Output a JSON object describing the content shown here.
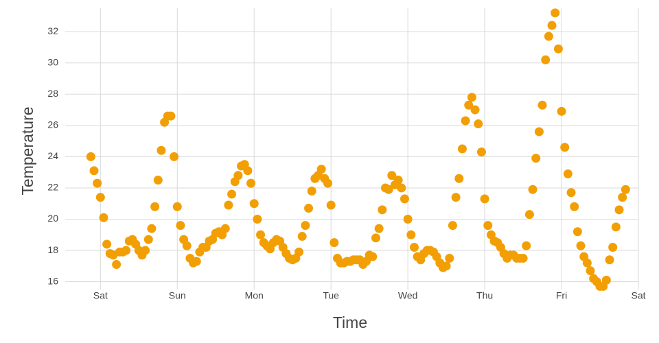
{
  "chart_data": {
    "type": "scatter",
    "x_label": "Time",
    "y_label": "Temperature",
    "color": "#f29f05",
    "grid": true,
    "x": [
      -3,
      -2,
      -1,
      0,
      1,
      2,
      3,
      4,
      5,
      6,
      7,
      8,
      9,
      10,
      11,
      12,
      13,
      14,
      15,
      16,
      17,
      18,
      19,
      20,
      21,
      22,
      23,
      24,
      25,
      26,
      27,
      28,
      29,
      30,
      31,
      32,
      33,
      34,
      35,
      36,
      37,
      38,
      39,
      40,
      41,
      42,
      43,
      44,
      45,
      46,
      47,
      48,
      49,
      50,
      51,
      52,
      53,
      54,
      55,
      56,
      57,
      58,
      59,
      60,
      61,
      62,
      63,
      64,
      65,
      66,
      67,
      68,
      69,
      70,
      71,
      72,
      73,
      74,
      75,
      76,
      77,
      78,
      79,
      80,
      81,
      82,
      83,
      84,
      85,
      86,
      87,
      88,
      89,
      90,
      91,
      92,
      93,
      94,
      95,
      96,
      97,
      98,
      99,
      100,
      101,
      102,
      103,
      104,
      105,
      106,
      107,
      108,
      109,
      110,
      111,
      112,
      113,
      114,
      115,
      116,
      117,
      118,
      119,
      120,
      121,
      122,
      123,
      124,
      125,
      126,
      127,
      128,
      129,
      130,
      131,
      132,
      133,
      134,
      135,
      136,
      137,
      138,
      139,
      140,
      141,
      142,
      143,
      144,
      145,
      146,
      147,
      148,
      149,
      150,
      151,
      152,
      153,
      154,
      155,
      156,
      157,
      158,
      159,
      160,
      161,
      162,
      163,
      164
    ],
    "values": [
      24.0,
      23.1,
      22.3,
      21.4,
      20.1,
      18.4,
      17.8,
      17.7,
      17.1,
      17.9,
      17.9,
      18.0,
      18.6,
      18.7,
      18.4,
      18.0,
      17.7,
      18.0,
      18.7,
      19.4,
      20.8,
      22.5,
      24.4,
      26.2,
      26.6,
      26.6,
      24.0,
      20.8,
      19.6,
      18.7,
      18.3,
      17.5,
      17.2,
      17.3,
      17.9,
      18.2,
      18.2,
      18.6,
      18.7,
      19.1,
      19.2,
      19.0,
      19.4,
      20.9,
      21.6,
      22.4,
      22.8,
      23.4,
      23.5,
      23.1,
      22.3,
      21.0,
      20.0,
      19.0,
      18.5,
      18.3,
      18.1,
      18.5,
      18.7,
      18.6,
      18.2,
      17.8,
      17.5,
      17.4,
      17.5,
      17.9,
      18.9,
      19.6,
      20.7,
      21.8,
      22.6,
      22.8,
      23.2,
      22.6,
      22.3,
      20.9,
      18.5,
      17.5,
      17.2,
      17.2,
      17.3,
      17.3,
      17.4,
      17.4,
      17.4,
      17.1,
      17.3,
      17.7,
      17.6,
      18.8,
      19.4,
      20.6,
      22.0,
      21.9,
      22.8,
      22.2,
      22.5,
      22.0,
      21.3,
      20.0,
      19.0,
      18.2,
      17.6,
      17.4,
      17.8,
      18.0,
      18.0,
      17.9,
      17.6,
      17.2,
      16.9,
      17.0,
      17.5,
      19.6,
      21.4,
      22.6,
      24.5,
      26.3,
      27.3,
      27.8,
      27.0,
      26.1,
      24.3,
      21.3,
      19.6,
      19.0,
      18.6,
      18.5,
      18.2,
      17.8,
      17.5,
      17.7,
      17.7,
      17.5,
      17.5,
      17.5,
      18.3,
      20.3,
      21.9,
      23.9,
      25.6,
      27.3,
      30.2,
      31.7,
      32.4,
      33.2,
      30.9,
      26.9,
      24.6,
      22.9,
      21.7,
      20.8,
      19.2,
      18.3,
      17.6,
      17.2,
      16.7,
      16.2,
      16.0,
      15.7,
      15.7,
      16.1,
      17.4,
      18.2,
      19.5,
      20.6,
      21.4,
      21.9
    ],
    "xlim": [
      -11,
      168
    ],
    "xticks": [
      {
        "value": 0,
        "label": "Sat"
      },
      {
        "value": 24,
        "label": "Sun"
      },
      {
        "value": 48,
        "label": "Mon"
      },
      {
        "value": 72,
        "label": "Tue"
      },
      {
        "value": 96,
        "label": "Wed"
      },
      {
        "value": 120,
        "label": "Thu"
      },
      {
        "value": 144,
        "label": "Fri"
      },
      {
        "value": 168,
        "label": "Sat"
      }
    ],
    "ylim": [
      15.5,
      33.5
    ],
    "yticks": [
      16,
      18,
      20,
      22,
      24,
      26,
      28,
      30,
      32
    ]
  }
}
